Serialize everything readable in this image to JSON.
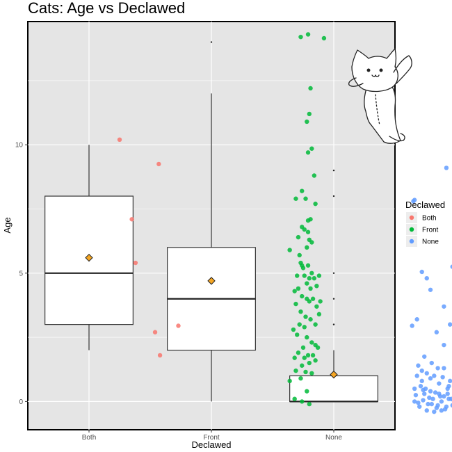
{
  "chart_data": {
    "type": "boxplot",
    "title": "Cats: Age vs Declawed",
    "xlabel": "Declawed",
    "ylabel": "Age",
    "categories": [
      "Both",
      "Front",
      "None"
    ],
    "ylim": [
      -1.1,
      14.8
    ],
    "yticks": [
      0,
      5,
      10
    ],
    "grid": true,
    "legend": {
      "title": "Declawed",
      "position": "right",
      "entries": [
        {
          "label": "Both",
          "color": "#F8766D"
        },
        {
          "label": "Front",
          "color": "#00BA38"
        },
        {
          "label": "None",
          "color": "#619CFF"
        }
      ]
    },
    "boxes": [
      {
        "category": "Both",
        "min": 2.0,
        "q1": 3.0,
        "median": 5.0,
        "q3": 8.0,
        "max": 10.0,
        "mean": 5.6,
        "outliers": []
      },
      {
        "category": "Front",
        "min": 0.0,
        "q1": 2.0,
        "median": 4.0,
        "q3": 6.0,
        "max": 12.0,
        "mean": 4.7,
        "outliers": [
          14.0
        ]
      },
      {
        "category": "None",
        "min": 0.0,
        "q1": 0.0,
        "median": 0.0,
        "q3": 1.0,
        "max": 2.0,
        "mean": 1.05,
        "outliers": [
          3.0,
          4.0,
          5.0,
          8.0,
          9.0
        ]
      }
    ],
    "points": {
      "Both": [
        [
          0.25,
          10.2
        ],
        [
          0.35,
          7.1
        ],
        [
          0.38,
          5.4
        ],
        [
          0.57,
          9.25
        ],
        [
          0.54,
          2.7
        ],
        [
          0.58,
          1.8
        ],
        [
          0.73,
          2.95
        ]
      ],
      "Front": [
        [
          1.73,
          14.2
        ],
        [
          1.79,
          14.3
        ],
        [
          1.92,
          14.15
        ],
        [
          1.81,
          12.2
        ],
        [
          1.8,
          11.2
        ],
        [
          1.78,
          10.9
        ],
        [
          1.82,
          9.85
        ],
        [
          1.79,
          9.7
        ],
        [
          1.84,
          8.8
        ],
        [
          1.74,
          8.2
        ],
        [
          1.69,
          7.9
        ],
        [
          1.77,
          7.9
        ],
        [
          1.85,
          7.7
        ],
        [
          1.81,
          7.1
        ],
        [
          1.79,
          7.05
        ],
        [
          1.74,
          6.8
        ],
        [
          1.76,
          6.7
        ],
        [
          1.71,
          6.4
        ],
        [
          1.79,
          6.6
        ],
        [
          1.8,
          6.3
        ],
        [
          1.82,
          6.2
        ],
        [
          1.64,
          5.9
        ],
        [
          1.72,
          5.7
        ],
        [
          1.78,
          6.0
        ],
        [
          1.73,
          5.4
        ],
        [
          1.74,
          5.3
        ],
        [
          1.75,
          5.2
        ],
        [
          1.79,
          5.3
        ],
        [
          1.76,
          4.9
        ],
        [
          1.8,
          4.8
        ],
        [
          1.82,
          5.0
        ],
        [
          1.7,
          4.9
        ],
        [
          1.71,
          4.4
        ],
        [
          1.78,
          4.6
        ],
        [
          1.81,
          4.4
        ],
        [
          1.84,
          4.8
        ],
        [
          1.88,
          4.9
        ],
        [
          1.86,
          4.5
        ],
        [
          1.68,
          4.3
        ],
        [
          1.74,
          4.1
        ],
        [
          1.78,
          4.0
        ],
        [
          1.8,
          3.9
        ],
        [
          1.83,
          4.0
        ],
        [
          1.86,
          3.7
        ],
        [
          1.89,
          3.9
        ],
        [
          1.69,
          3.8
        ],
        [
          1.73,
          3.5
        ],
        [
          1.77,
          3.3
        ],
        [
          1.81,
          3.2
        ],
        [
          1.85,
          3.0
        ],
        [
          1.88,
          3.4
        ],
        [
          1.72,
          3.0
        ],
        [
          1.76,
          2.9
        ],
        [
          1.67,
          2.8
        ],
        [
          1.7,
          2.6
        ],
        [
          1.78,
          2.5
        ],
        [
          1.82,
          2.3
        ],
        [
          1.85,
          2.2
        ],
        [
          1.75,
          2.1
        ],
        [
          1.87,
          2.1
        ],
        [
          1.71,
          1.9
        ],
        [
          1.79,
          1.8
        ],
        [
          1.83,
          1.8
        ],
        [
          1.68,
          1.7
        ],
        [
          1.76,
          1.7
        ],
        [
          1.8,
          1.5
        ],
        [
          1.74,
          1.4
        ],
        [
          1.85,
          1.6
        ],
        [
          1.69,
          1.2
        ],
        [
          1.77,
          1.15
        ],
        [
          1.82,
          1.1
        ],
        [
          1.73,
          0.9
        ],
        [
          1.64,
          0.8
        ],
        [
          1.78,
          0.4
        ],
        [
          1.68,
          0.1
        ],
        [
          1.74,
          0.0
        ],
        [
          1.8,
          -0.1
        ]
      ],
      "None": [
        [
          2.65,
          7.8
        ],
        [
          2.66,
          7.85
        ],
        [
          2.92,
          9.1
        ],
        [
          2.72,
          5.05
        ],
        [
          2.76,
          4.8
        ],
        [
          2.79,
          4.35
        ],
        [
          2.97,
          5.25
        ],
        [
          2.64,
          2.95
        ],
        [
          2.68,
          3.2
        ],
        [
          2.95,
          3.0
        ],
        [
          2.9,
          3.7
        ],
        [
          2.84,
          2.7
        ],
        [
          2.99,
          2.0
        ],
        [
          2.74,
          1.75
        ],
        [
          2.9,
          2.2
        ],
        [
          2.8,
          1.5
        ],
        [
          2.69,
          1.4
        ],
        [
          2.85,
          1.3
        ],
        [
          2.72,
          1.2
        ],
        [
          2.76,
          1.1
        ],
        [
          2.82,
          1.0
        ],
        [
          2.89,
          0.95
        ],
        [
          2.95,
          0.8
        ],
        [
          2.71,
          0.6
        ],
        [
          2.75,
          0.5
        ],
        [
          2.79,
          0.4
        ],
        [
          2.83,
          0.35
        ],
        [
          2.86,
          0.3
        ],
        [
          2.9,
          0.2
        ],
        [
          2.94,
          0.1
        ],
        [
          2.98,
          0.05
        ],
        [
          2.66,
          0.0
        ],
        [
          2.69,
          -0.05
        ],
        [
          2.73,
          0.05
        ],
        [
          2.77,
          -0.1
        ],
        [
          2.81,
          0.1
        ],
        [
          2.85,
          -0.15
        ],
        [
          2.88,
          0.0
        ],
        [
          2.92,
          -0.2
        ],
        [
          2.96,
          0.1
        ],
        [
          3.0,
          -0.1
        ],
        [
          2.67,
          0.25
        ],
        [
          2.74,
          0.3
        ],
        [
          2.78,
          0.15
        ],
        [
          2.84,
          -0.25
        ],
        [
          2.87,
          0.2
        ],
        [
          2.91,
          -0.3
        ],
        [
          2.97,
          -0.15
        ],
        [
          2.7,
          -0.2
        ],
        [
          2.76,
          -0.35
        ],
        [
          2.82,
          -0.4
        ],
        [
          2.88,
          -0.35
        ],
        [
          2.93,
          0.3
        ],
        [
          2.99,
          0.25
        ],
        [
          2.72,
          0.8
        ],
        [
          2.79,
          0.9
        ],
        [
          2.86,
          0.7
        ],
        [
          2.94,
          0.6
        ],
        [
          2.66,
          0.5
        ],
        [
          2.8,
          -0.1
        ],
        [
          2.68,
          1.0
        ],
        [
          2.9,
          1.3
        ],
        [
          2.93,
          0.5
        ],
        [
          3.02,
          0.15
        ],
        [
          2.73,
          0.45
        ]
      ]
    }
  }
}
